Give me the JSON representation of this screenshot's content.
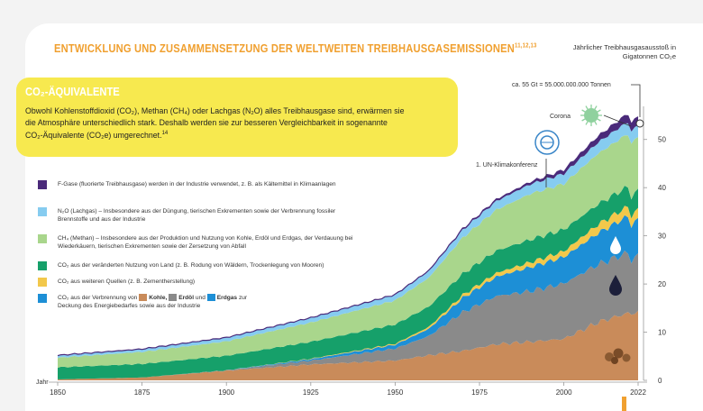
{
  "header": {
    "title": "ENTWICKLUNG UND ZUSAMMENSETZUNG DER WELTWEITEN TREIBHAUSGASEMISSIONEN",
    "title_refs": "11,12,13",
    "unit_label_line1": "Jährlicher Treibhausgasausstoß in",
    "unit_label_line2": "Gigatonnen CO₂e"
  },
  "infobox": {
    "title": "CO₂-ÄQUIVALENTE",
    "text_line1": "Obwohl Kohlenstoffdioxid (CO₂), Methan (CH₄) oder Lachgas (N₂O) alles Treibhausgase sind, erwärmen sie",
    "text_line2": "die Atmosphäre unterschiedlich stark. Deshalb werden sie zur besseren Vergleichbarkeit in sogenannte",
    "text_line3": "CO₂-Äquivalente (CO₂e) umgerechnet.",
    "ref": "14"
  },
  "legend": {
    "fgas": "F-Gase (fluorierte Treibhausgase) werden in der Industrie verwendet, z. B. als Kältemittel in Klimaanlagen",
    "n2o": "N₂O (Lachgas) – Insbesondere aus der Düngung, tierischen Exkrementen sowie der Verbrennung fossiler Brennstoffe und aus der Industrie",
    "ch4": "CH₄ (Methan) – Insbesondere aus der Produktion und Nutzung von Kohle, Erdöl und Erdgas, der Verdauung bei Wiederkäuern, tierischen Exkrementen sowie der Zersetzung von Abfall",
    "land": "CO₂ aus der veränderten Nutzung von Land (z. B. Rodung von Wäldern, Trockenlegung von Mooren)",
    "other": "CO₂ aus weiteren Quellen (z. B. Zementherstellung)",
    "fossil_pre": "CO₂ aus der Verbrennung von",
    "coal": "Kohle,",
    "oil": "Erdöl",
    "und": "und",
    "gas": "Erdgas",
    "fossil_post1": "zur",
    "fossil_post2": "Deckung des Energiebedarfes sowie aus der Industrie"
  },
  "annotations": {
    "peak": "ca. 55 Gt = 55.000.000.000 Tonnen",
    "corona": "Corona",
    "unfccc": "1. UN-Klimakonferenz",
    "jahr": "Jahr"
  },
  "colors": {
    "coal": "#c98b5a",
    "oil": "#8a8a8a",
    "gas": "#1d8fd6",
    "other": "#f2c84b",
    "land": "#16a06a",
    "ch4": "#a9d68c",
    "n2o": "#86ccf0",
    "fgas": "#4a2a7a",
    "title": "#f0a030",
    "infobox": "#f7e94f"
  },
  "icons": [
    "un-climate-logo-icon",
    "coronavirus-icon",
    "water-drop-icon",
    "oil-drop-icon",
    "coal-pile-icon"
  ],
  "chart_data": {
    "type": "area",
    "stacked": true,
    "title": "ENTWICKLUNG UND ZUSAMMENSETZUNG DER WELTWEITEN TREIBHAUSGASEMISSIONEN",
    "xlabel": "Jahr",
    "ylabel": "Jährlicher Treibhausgasausstoß in Gigatonnen CO₂e",
    "xlim": [
      1850,
      2022
    ],
    "ylim": [
      0,
      55
    ],
    "x_ticks": [
      1850,
      1875,
      1900,
      1925,
      1950,
      1975,
      2000,
      2022
    ],
    "y_ticks": [
      0,
      10,
      20,
      30,
      40,
      50
    ],
    "x": [
      1850,
      1875,
      1900,
      1925,
      1950,
      1960,
      1970,
      1980,
      1990,
      2000,
      2010,
      2019,
      2020,
      2022
    ],
    "series": [
      {
        "name": "Kohle",
        "color": "#c98b5a",
        "values": [
          0.2,
          0.6,
          2.0,
          3.3,
          4.1,
          5.2,
          6.1,
          7.5,
          8.0,
          8.6,
          12.0,
          14.0,
          13.6,
          14.5
        ]
      },
      {
        "name": "Erdöl",
        "color": "#8a8a8a",
        "values": [
          0.0,
          0.0,
          0.1,
          0.8,
          2.5,
          4.0,
          8.0,
          10.0,
          10.5,
          11.5,
          12.0,
          12.5,
          11.0,
          11.8
        ]
      },
      {
        "name": "Erdgas",
        "color": "#1d8fd6",
        "values": [
          0.0,
          0.0,
          0.0,
          0.3,
          0.8,
          1.5,
          3.0,
          4.0,
          5.0,
          5.5,
          6.5,
          7.6,
          7.3,
          7.5
        ]
      },
      {
        "name": "CO₂ aus weiteren Quellen",
        "color": "#f2c84b",
        "values": [
          0.0,
          0.0,
          0.0,
          0.1,
          0.2,
          0.4,
          0.6,
          0.8,
          1.0,
          1.2,
          1.8,
          2.0,
          2.0,
          2.0
        ]
      },
      {
        "name": "CO₂ aus veränderter Landnutzung",
        "color": "#16a06a",
        "values": [
          2.5,
          2.8,
          3.0,
          3.5,
          4.0,
          4.2,
          4.4,
          4.6,
          4.7,
          4.5,
          4.2,
          4.1,
          4.0,
          3.9
        ]
      },
      {
        "name": "CH₄ (Methan)",
        "color": "#a9d68c",
        "values": [
          2.0,
          2.5,
          3.0,
          4.0,
          5.0,
          6.0,
          7.5,
          8.5,
          9.5,
          9.5,
          10.5,
          11.0,
          11.0,
          11.2
        ]
      },
      {
        "name": "N₂O (Lachgas)",
        "color": "#86ccf0",
        "values": [
          0.5,
          0.6,
          0.8,
          1.0,
          1.2,
          1.4,
          1.6,
          1.8,
          2.0,
          2.1,
          2.3,
          2.5,
          2.5,
          2.5
        ]
      },
      {
        "name": "F-Gase",
        "color": "#4a2a7a",
        "values": [
          0.0,
          0.0,
          0.0,
          0.0,
          0.0,
          0.1,
          0.2,
          0.3,
          0.4,
          0.7,
          1.2,
          1.6,
          1.6,
          1.7
        ]
      }
    ],
    "annotations": [
      {
        "text": "ca. 55 Gt = 55.000.000.000 Tonnen",
        "x": 2022,
        "y": 55
      },
      {
        "text": "Corona",
        "x": 2020,
        "y": 52
      },
      {
        "text": "1. UN-Klimakonferenz",
        "x": 1995,
        "y": 40
      }
    ]
  }
}
